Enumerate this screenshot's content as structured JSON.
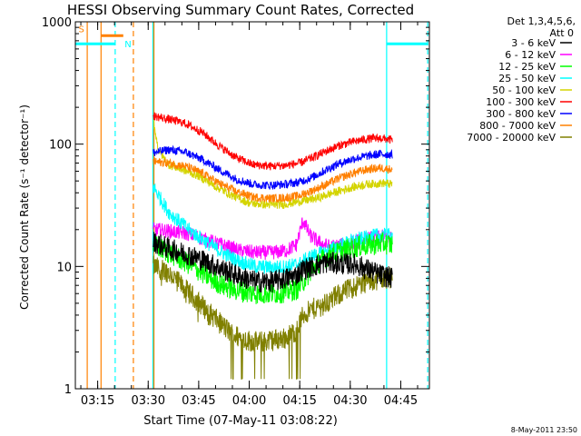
{
  "chart_data": {
    "type": "line",
    "title": "HESSI Observing Summary Count Rates, Corrected",
    "xlabel": "Start Time (07-May-11 03:08:22)",
    "ylabel": "Corrected Count Rate (s⁻¹ detector⁻¹)",
    "yscale": "log",
    "ylim": [
      1,
      1000
    ],
    "xlim_minutes": [
      188.37,
      293.5
    ],
    "x_ticks": [
      {
        "label": "03:15",
        "minute": 195
      },
      {
        "label": "03:30",
        "minute": 210
      },
      {
        "label": "03:45",
        "minute": 225
      },
      {
        "label": "04:00",
        "minute": 240
      },
      {
        "label": "04:15",
        "minute": 255
      },
      {
        "label": "04:30",
        "minute": 270
      },
      {
        "label": "04:45",
        "minute": 285
      }
    ],
    "y_ticks": [
      {
        "label": "1",
        "value": 1
      },
      {
        "label": "10",
        "value": 10
      },
      {
        "label": "100",
        "value": 100
      },
      {
        "label": "1000",
        "value": 1000
      }
    ],
    "x_unit": "minutes of day (UT)",
    "data_start_minute": 211.5,
    "data_end_minute": 282.5,
    "legend": {
      "position": "right",
      "header": [
        "Det 1,3,4,5,6,",
        "Att 0"
      ]
    },
    "series": [
      {
        "name": "3 - 6 keV",
        "color": "#000000",
        "x": [
          211.5,
          216,
          222,
          227,
          232,
          237,
          242,
          247,
          251,
          254,
          256,
          259,
          263,
          267,
          271,
          275,
          279,
          282.5
        ],
        "y": [
          16,
          14,
          12.5,
          11,
          9.5,
          8.3,
          7.5,
          7.5,
          8,
          8.5,
          9.5,
          10,
          10.8,
          10.5,
          10.5,
          9.5,
          8.5,
          8
        ]
      },
      {
        "name": "6 - 12 keV",
        "color": "#ff00ff",
        "x": [
          211.5,
          216,
          222,
          227,
          232,
          237,
          242,
          247,
          251,
          254,
          256,
          258,
          261,
          264,
          268,
          272,
          276,
          280,
          282.5
        ],
        "y": [
          20,
          19.5,
          18.5,
          16.5,
          15,
          13.5,
          13,
          13,
          13.5,
          15,
          24,
          18,
          15.5,
          14.5,
          15,
          16,
          17,
          17.5,
          17
        ]
      },
      {
        "name": "12 - 25 keV",
        "color": "#00ff00",
        "x": [
          211.5,
          216,
          222,
          227,
          232,
          237,
          242,
          247,
          251,
          254,
          256,
          258,
          261,
          264,
          268,
          272,
          276,
          280,
          282.5
        ],
        "y": [
          15,
          13,
          10.5,
          8.5,
          7,
          6.3,
          6,
          6,
          6.2,
          6.5,
          7.5,
          9,
          11,
          12.5,
          13.5,
          14.5,
          15,
          15.5,
          15
        ]
      },
      {
        "name": "25 - 50 keV",
        "color": "#00ffff",
        "x": [
          211.5,
          216,
          222,
          227,
          232,
          237,
          242,
          247,
          251,
          255,
          258,
          262,
          266,
          270,
          274,
          278,
          282.5
        ],
        "y": [
          45,
          28,
          20,
          16,
          13,
          11,
          10,
          9.8,
          10,
          10.5,
          12,
          13,
          14.5,
          16,
          17,
          18,
          18
        ]
      },
      {
        "name": "50 - 100 keV",
        "color": "#d4d400",
        "x": [
          211.5,
          213,
          216,
          220,
          225,
          230,
          235,
          240,
          245,
          250,
          255,
          260,
          265,
          270,
          275,
          280,
          282.5
        ],
        "y": [
          160,
          90,
          68,
          62,
          55,
          45,
          38,
          33,
          32,
          32,
          34,
          36,
          40,
          44,
          47,
          48,
          47
        ]
      },
      {
        "name": "100 - 300 keV",
        "color": "#ff0000",
        "x": [
          211.5,
          216,
          221,
          226,
          231,
          236,
          241,
          246,
          251,
          255,
          259,
          263,
          267,
          271,
          275,
          279,
          282.5
        ],
        "y": [
          170,
          160,
          148,
          125,
          97,
          78,
          68,
          66,
          67,
          70,
          78,
          88,
          98,
          105,
          110,
          112,
          108
        ]
      },
      {
        "name": "300 - 800 keV",
        "color": "#0000ff",
        "x": [
          211.5,
          216,
          221,
          226,
          231,
          236,
          241,
          246,
          251,
          255,
          259,
          263,
          267,
          271,
          275,
          279,
          282.5
        ],
        "y": [
          85,
          90,
          86,
          75,
          62,
          52,
          47,
          46,
          47,
          49,
          54,
          62,
          70,
          76,
          80,
          83,
          82
        ]
      },
      {
        "name": "800 - 7000 keV",
        "color": "#ff8000",
        "x": [
          211.5,
          216,
          221,
          226,
          231,
          236,
          241,
          246,
          251,
          255,
          259,
          263,
          267,
          271,
          275,
          279,
          282.5
        ],
        "y": [
          72,
          70,
          66,
          58,
          48,
          41,
          37,
          36,
          36.5,
          38,
          42,
          47,
          53,
          58,
          62,
          64,
          62
        ]
      },
      {
        "name": "7000 - 20000 keV",
        "color": "#808000",
        "x": [
          211.5,
          216,
          221,
          226,
          231,
          235,
          239,
          243,
          247,
          251,
          254,
          256,
          259,
          263,
          267,
          271,
          275,
          279,
          282.5
        ],
        "y": [
          10,
          9,
          6.5,
          4.8,
          3.5,
          2.8,
          2.5,
          2.4,
          2.5,
          2.6,
          3,
          4,
          4.5,
          5,
          6,
          6.8,
          7.5,
          8,
          8
        ]
      }
    ],
    "vertical_markers": [
      {
        "minute": 191.9,
        "color": "#ff8000",
        "style": "solid"
      },
      {
        "minute": 196.0,
        "color": "#ff8000",
        "style": "solid"
      },
      {
        "minute": 200.2,
        "color": "#00ffff",
        "style": "dash"
      },
      {
        "minute": 205.6,
        "color": "#ff8000",
        "style": "dash"
      },
      {
        "minute": 211.4,
        "color": "#00ffff",
        "style": "solid"
      },
      {
        "minute": 211.7,
        "color": "#ff8000",
        "style": "solid"
      },
      {
        "minute": 280.8,
        "color": "#00ffff",
        "style": "solid"
      },
      {
        "minute": 293.0,
        "color": "#00ffff",
        "style": "dash"
      }
    ],
    "flag_bars": [
      {
        "x0": 188.4,
        "x1": 200.3,
        "y": 660,
        "color": "#00ffff"
      },
      {
        "x0": 196.0,
        "x1": 202.6,
        "y": 770,
        "color": "#ff8000"
      },
      {
        "x0": 280.8,
        "x1": 293.0,
        "y": 660,
        "color": "#00ffff"
      }
    ],
    "flag_labels": [
      {
        "text": "S",
        "minute": 189.3,
        "y": 820,
        "color": "#ff8000"
      },
      {
        "text": "N",
        "minute": 203.0,
        "y": 620,
        "color": "#00ffff"
      }
    ],
    "footer_date": "8-May-2011 23:50"
  }
}
